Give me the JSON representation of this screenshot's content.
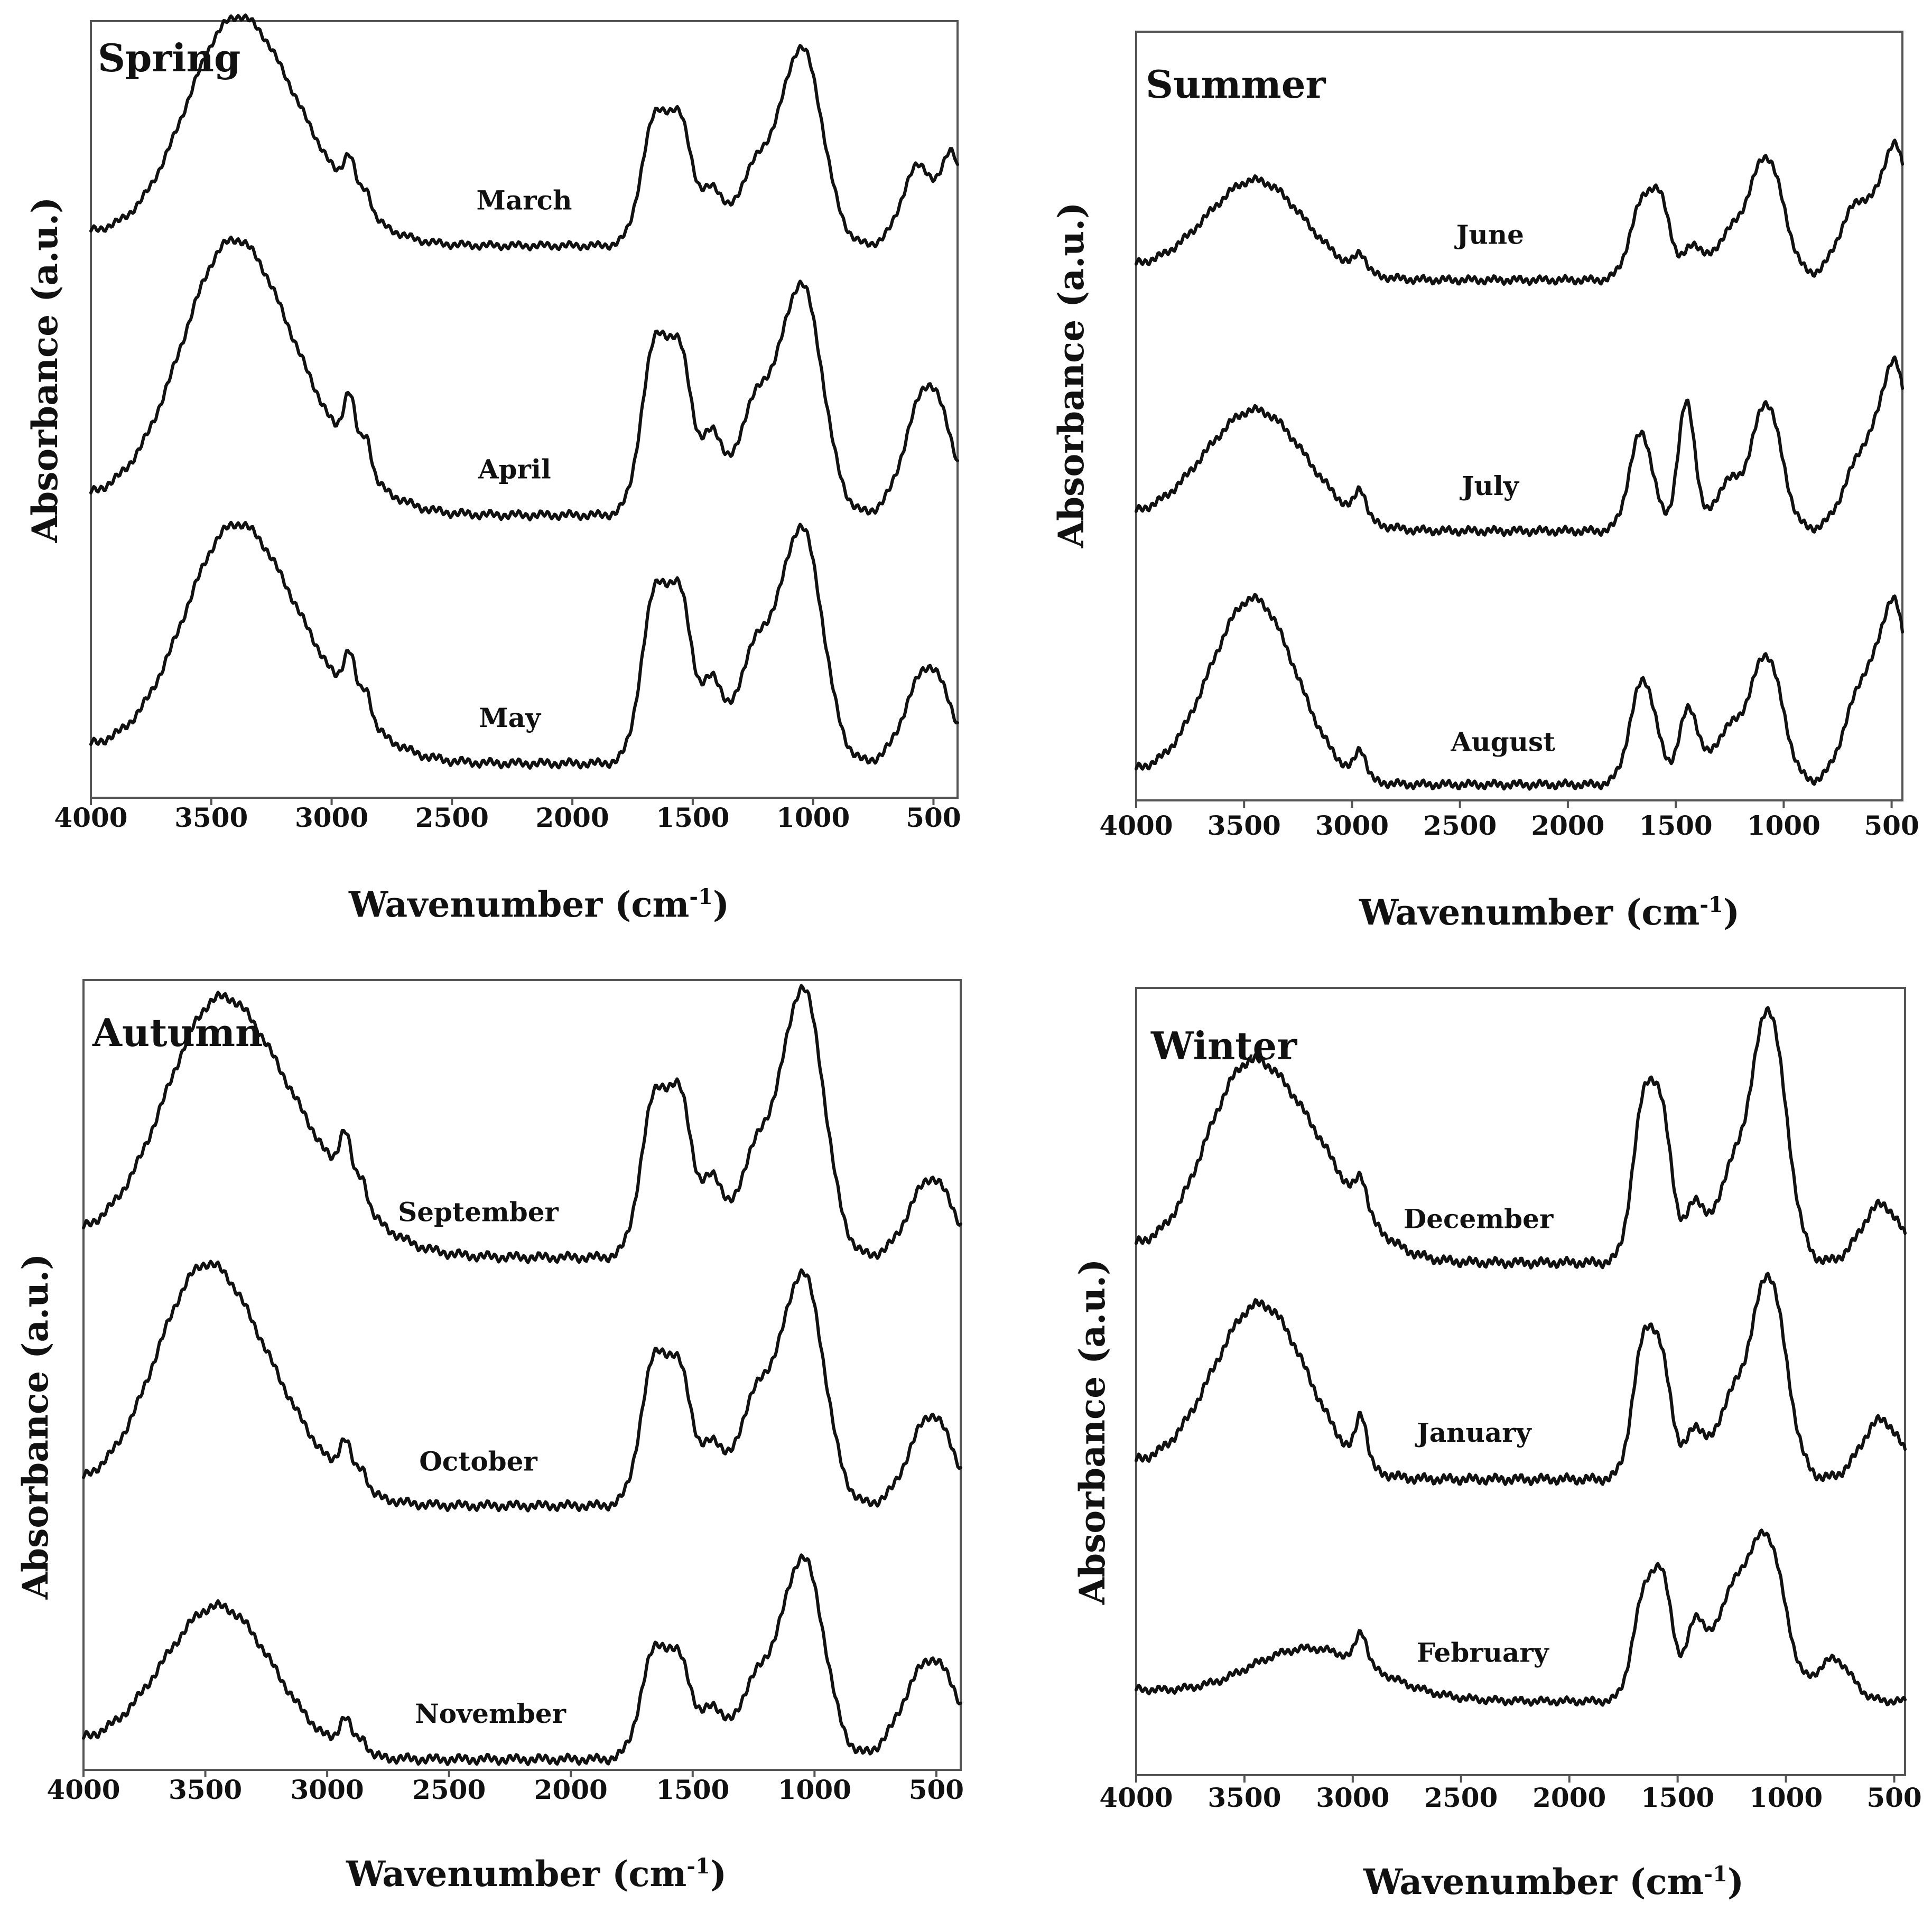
{
  "figure": {
    "description_free": true
  },
  "chart_data": [
    {
      "type": "line",
      "title": "Spring",
      "xlabel": "Wavenumber (cm",
      "xlabel_sup": "-1",
      "xlabel_close": ")",
      "ylabel": "Absorbance (a.u.)",
      "xlim": [
        4000,
        400
      ],
      "x_reversed": true,
      "x_ticks": [
        4000,
        3500,
        3000,
        2500,
        2000,
        1500,
        1000,
        500
      ],
      "series": [
        {
          "name": "March",
          "label_at": 2200
        },
        {
          "name": "April",
          "label_at": 2240
        },
        {
          "name": "May",
          "label_at": 2260
        }
      ]
    },
    {
      "type": "line",
      "title": "Summer",
      "xlabel": "Wavenumber (cm",
      "xlabel_sup": "-1",
      "xlabel_close": ")",
      "ylabel": "Absorbance (a.u.)",
      "xlim": [
        4000,
        450
      ],
      "x_reversed": true,
      "x_ticks": [
        4000,
        3500,
        3000,
        2500,
        2000,
        1500,
        1000,
        500
      ],
      "series": [
        {
          "name": "June",
          "label_at": 2360
        },
        {
          "name": "July",
          "label_at": 2360
        },
        {
          "name": "August",
          "label_at": 2300
        }
      ]
    },
    {
      "type": "line",
      "title": "Autumn",
      "xlabel": "Wavenumber (cm",
      "xlabel_sup": "-1",
      "xlabel_close": ")",
      "ylabel": "Absorbance (a.u.)",
      "xlim": [
        4000,
        400
      ],
      "x_reversed": true,
      "x_ticks": [
        4000,
        3500,
        3000,
        2500,
        2000,
        1500,
        1000,
        500
      ],
      "series": [
        {
          "name": "September",
          "label_at": 2380
        },
        {
          "name": "October",
          "label_at": 2380
        },
        {
          "name": "November",
          "label_at": 2330
        }
      ]
    },
    {
      "type": "line",
      "title": "Winter",
      "xlabel": "Wavenumber (cm",
      "xlabel_sup": "-1",
      "xlabel_close": ")",
      "ylabel": "Absorbance (a.u.)",
      "xlim": [
        4000,
        450
      ],
      "x_reversed": true,
      "x_ticks": [
        4000,
        3500,
        3000,
        2500,
        2000,
        1500,
        1000,
        500
      ],
      "series": [
        {
          "name": "December",
          "label_at": 2420
        },
        {
          "name": "January",
          "label_at": 2440
        },
        {
          "name": "February",
          "label_at": 2400
        }
      ]
    }
  ]
}
